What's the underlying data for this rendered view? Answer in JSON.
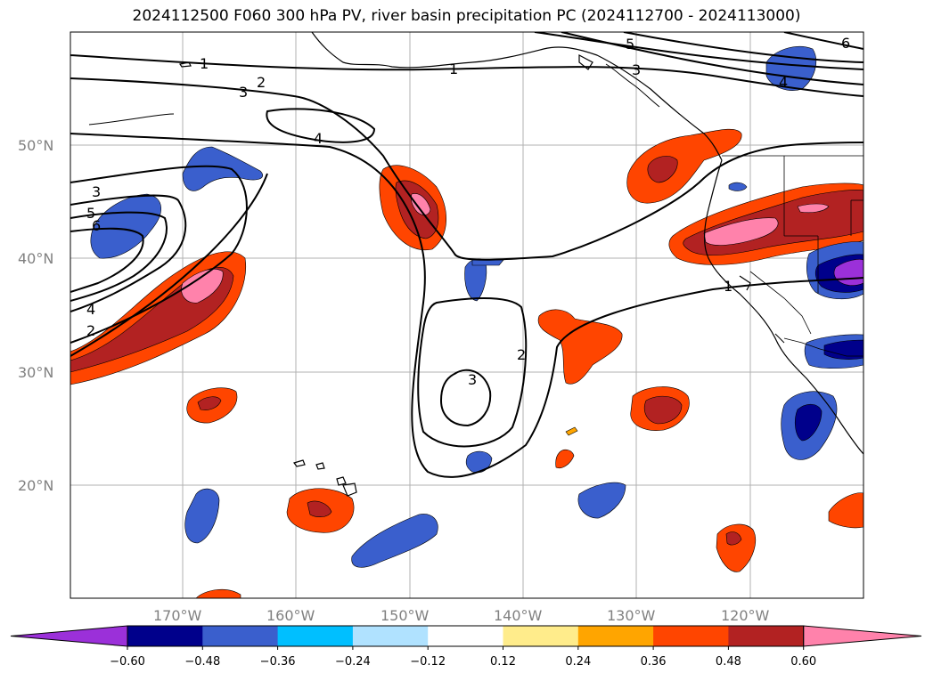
{
  "title": "2024112500 F060 300 hPa PV, river basin precipitation PC (2024112700 - 2024113000)",
  "lon_ticks": [
    "170°W",
    "160°W",
    "150°W",
    "140°W",
    "130°W",
    "120°W"
  ],
  "lat_ticks": [
    "50°N",
    "40°N",
    "30°N",
    "20°N"
  ],
  "colorbar": {
    "ticks": [
      "−0.60",
      "−0.48",
      "−0.36",
      "−0.24",
      "−0.12",
      "0.12",
      "0.24",
      "0.36",
      "0.48",
      "0.60"
    ],
    "colors": [
      "#9b30d9",
      "#00008b",
      "#3a5fcd",
      "#00bfff",
      "#b0e2ff",
      "#ffffff",
      "#ffec8b",
      "#ffa500",
      "#ff4500",
      "#b22222",
      "#ff82ab"
    ]
  },
  "contour_labels": [
    "1",
    "2",
    "3",
    "4",
    "5",
    "6"
  ],
  "colors": {
    "coast": "#000000",
    "grid": "#b0b0b0",
    "contour": "#000000"
  }
}
